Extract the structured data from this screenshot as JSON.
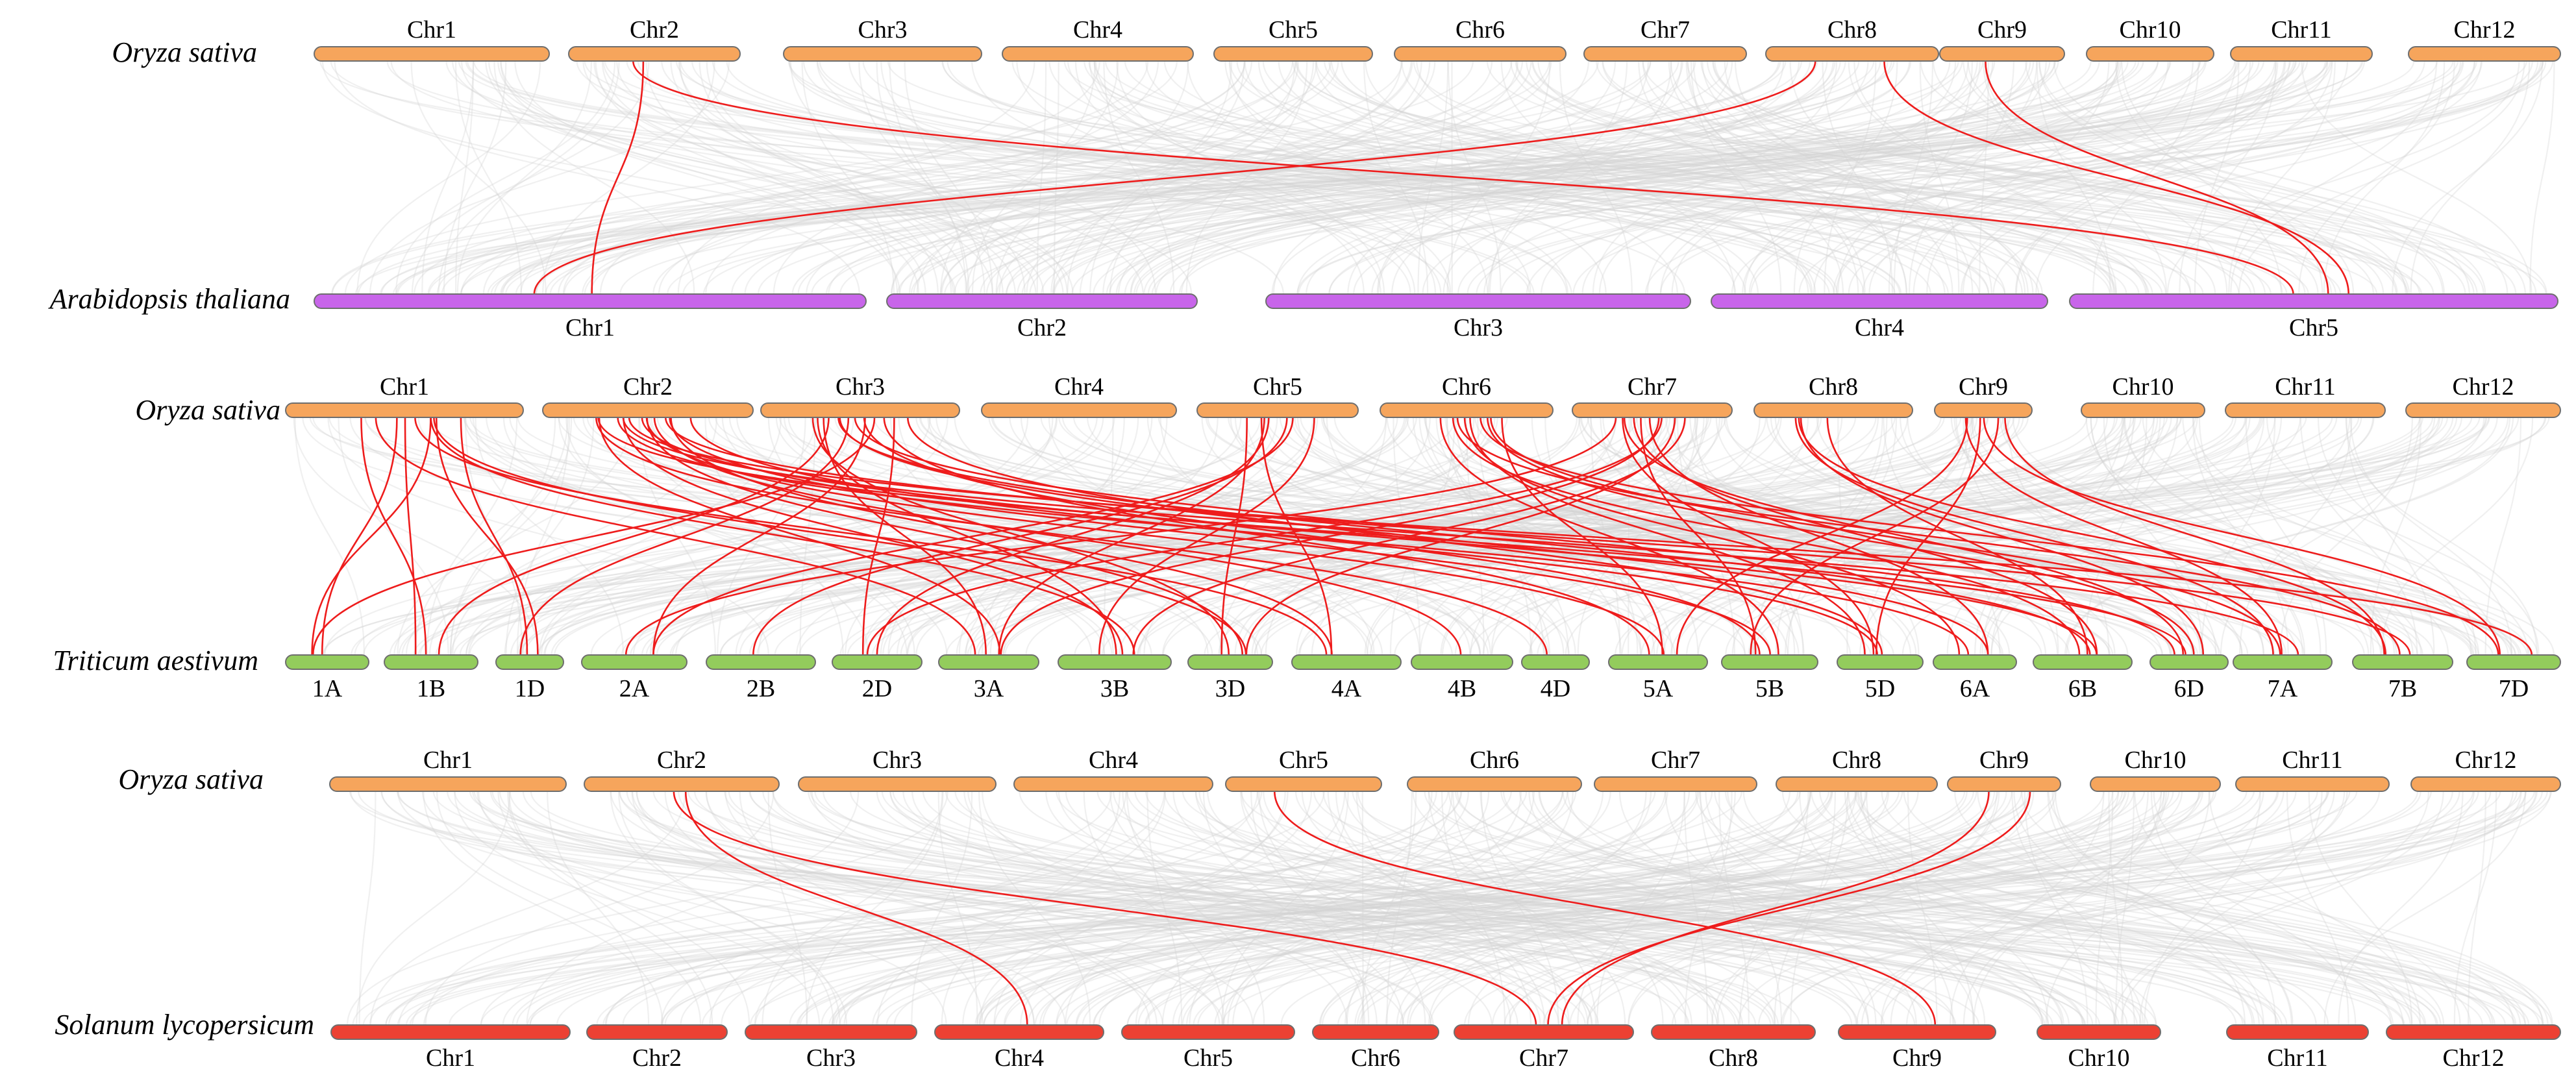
{
  "chart_data": {
    "type": "diagram",
    "title": "",
    "colors": {
      "rice": "#f6a55c",
      "arabidopsis": "#c865ea",
      "wheat": "#93cc5c",
      "tomato": "#ec4133",
      "highlight": "#ee1c1c",
      "background_link": "#d4d4d4"
    },
    "panels": [
      {
        "id": "rice_vs_arabidopsis",
        "top_species": "Oryza sativa",
        "bottom_species": "Arabidopsis thaliana",
        "top_chromosomes": [
          "Chr1",
          "Chr2",
          "Chr3",
          "Chr4",
          "Chr5",
          "Chr6",
          "Chr7",
          "Chr8",
          "Chr9",
          "Chr10",
          "Chr11",
          "Chr12"
        ],
        "bottom_chromosomes": [
          "Chr1",
          "Chr2",
          "Chr3",
          "Chr4",
          "Chr5"
        ],
        "highlighted_links": [
          {
            "top": "Chr2",
            "bottom": "Chr1"
          },
          {
            "top": "Chr2",
            "bottom": "Chr5"
          },
          {
            "top": "Chr8",
            "bottom": "Chr1"
          },
          {
            "top": "Chr8",
            "bottom": "Chr5"
          },
          {
            "top": "Chr9",
            "bottom": "Chr5"
          }
        ]
      },
      {
        "id": "rice_vs_wheat",
        "top_species": "Oryza sativa",
        "bottom_species": "Triticum aestivum",
        "top_chromosomes": [
          "Chr1",
          "Chr2",
          "Chr3",
          "Chr4",
          "Chr5",
          "Chr6",
          "Chr7",
          "Chr8",
          "Chr9",
          "Chr10",
          "Chr11",
          "Chr12"
        ],
        "bottom_chromosomes": [
          "1A",
          "1B",
          "1D",
          "2A",
          "2B",
          "2D",
          "3A",
          "3B",
          "3D",
          "4A",
          "4B",
          "4D",
          "5A",
          "5B",
          "5D",
          "6A",
          "6B",
          "6D",
          "7A",
          "7B",
          "7D"
        ],
        "highlighted_links": [
          {
            "top": "Chr1",
            "bottom": "1A"
          },
          {
            "top": "Chr1",
            "bottom": "1B"
          },
          {
            "top": "Chr1",
            "bottom": "1D"
          },
          {
            "top": "Chr1",
            "bottom": "1A"
          },
          {
            "top": "Chr1",
            "bottom": "1B"
          },
          {
            "top": "Chr1",
            "bottom": "1D"
          },
          {
            "top": "Chr1",
            "bottom": "3A"
          },
          {
            "top": "Chr1",
            "bottom": "3B"
          },
          {
            "top": "Chr1",
            "bottom": "3D"
          },
          {
            "top": "Chr1",
            "bottom": "4A"
          },
          {
            "top": "Chr2",
            "bottom": "5A"
          },
          {
            "top": "Chr2",
            "bottom": "5B"
          },
          {
            "top": "Chr2",
            "bottom": "5D"
          },
          {
            "top": "Chr2",
            "bottom": "6A"
          },
          {
            "top": "Chr2",
            "bottom": "6B"
          },
          {
            "top": "Chr2",
            "bottom": "6D"
          },
          {
            "top": "Chr2",
            "bottom": "7A"
          },
          {
            "top": "Chr2",
            "bottom": "7B"
          },
          {
            "top": "Chr2",
            "bottom": "7D"
          },
          {
            "top": "Chr2",
            "bottom": "3A"
          },
          {
            "top": "Chr2",
            "bottom": "3B"
          },
          {
            "top": "Chr2",
            "bottom": "3D"
          },
          {
            "top": "Chr2",
            "bottom": "4A"
          },
          {
            "top": "Chr2",
            "bottom": "4B"
          },
          {
            "top": "Chr2",
            "bottom": "4D"
          },
          {
            "top": "Chr3",
            "bottom": "1A"
          },
          {
            "top": "Chr3",
            "bottom": "1B"
          },
          {
            "top": "Chr3",
            "bottom": "1D"
          },
          {
            "top": "Chr3",
            "bottom": "2A"
          },
          {
            "top": "Chr3",
            "bottom": "2D"
          },
          {
            "top": "Chr3",
            "bottom": "3A"
          },
          {
            "top": "Chr3",
            "bottom": "3B"
          },
          {
            "top": "Chr3",
            "bottom": "3D"
          },
          {
            "top": "Chr3",
            "bottom": "5A"
          },
          {
            "top": "Chr3",
            "bottom": "5B"
          },
          {
            "top": "Chr3",
            "bottom": "5D"
          },
          {
            "top": "Chr3",
            "bottom": "6A"
          },
          {
            "top": "Chr3",
            "bottom": "6B"
          },
          {
            "top": "Chr3",
            "bottom": "6D"
          },
          {
            "top": "Chr5",
            "bottom": "2A"
          },
          {
            "top": "Chr5",
            "bottom": "2B"
          },
          {
            "top": "Chr5",
            "bottom": "2D"
          },
          {
            "top": "Chr5",
            "bottom": "3A"
          },
          {
            "top": "Chr5",
            "bottom": "3B"
          },
          {
            "top": "Chr5",
            "bottom": "3D"
          },
          {
            "top": "Chr5",
            "bottom": "4A"
          },
          {
            "top": "Chr6",
            "bottom": "5A"
          },
          {
            "top": "Chr6",
            "bottom": "5B"
          },
          {
            "top": "Chr6",
            "bottom": "5D"
          },
          {
            "top": "Chr6",
            "bottom": "6A"
          },
          {
            "top": "Chr6",
            "bottom": "6B"
          },
          {
            "top": "Chr6",
            "bottom": "6D"
          },
          {
            "top": "Chr6",
            "bottom": "7A"
          },
          {
            "top": "Chr6",
            "bottom": "7B"
          },
          {
            "top": "Chr6",
            "bottom": "7D"
          },
          {
            "top": "Chr7",
            "bottom": "2A"
          },
          {
            "top": "Chr7",
            "bottom": "2D"
          },
          {
            "top": "Chr7",
            "bottom": "3A"
          },
          {
            "top": "Chr7",
            "bottom": "3B"
          },
          {
            "top": "Chr7",
            "bottom": "3D"
          },
          {
            "top": "Chr7",
            "bottom": "5B"
          },
          {
            "top": "Chr7",
            "bottom": "5D"
          },
          {
            "top": "Chr7",
            "bottom": "6A"
          },
          {
            "top": "Chr7",
            "bottom": "6B"
          },
          {
            "top": "Chr7",
            "bottom": "6D"
          },
          {
            "top": "Chr8",
            "bottom": "6B"
          },
          {
            "top": "Chr8",
            "bottom": "6D"
          },
          {
            "top": "Chr8",
            "bottom": "7A"
          },
          {
            "top": "Chr8",
            "bottom": "7B"
          },
          {
            "top": "Chr9",
            "bottom": "5A"
          },
          {
            "top": "Chr9",
            "bottom": "5B"
          },
          {
            "top": "Chr9",
            "bottom": "5D"
          },
          {
            "top": "Chr9",
            "bottom": "7A"
          },
          {
            "top": "Chr9",
            "bottom": "7B"
          },
          {
            "top": "Chr9",
            "bottom": "7D"
          }
        ]
      },
      {
        "id": "rice_vs_tomato",
        "top_species": "Oryza sativa",
        "bottom_species": "Solanum lycopersicum",
        "top_chromosomes": [
          "Chr1",
          "Chr2",
          "Chr3",
          "Chr4",
          "Chr5",
          "Chr6",
          "Chr7",
          "Chr8",
          "Chr9",
          "Chr10",
          "Chr11",
          "Chr12"
        ],
        "bottom_chromosomes": [
          "Chr1",
          "Chr2",
          "Chr3",
          "Chr4",
          "Chr5",
          "Chr6",
          "Chr7",
          "Chr8",
          "Chr9",
          "Chr10",
          "Chr11",
          "Chr12"
        ],
        "highlighted_links": [
          {
            "top": "Chr2",
            "bottom": "Chr4"
          },
          {
            "top": "Chr2",
            "bottom": "Chr7"
          },
          {
            "top": "Chr5",
            "bottom": "Chr9"
          },
          {
            "top": "Chr9",
            "bottom": "Chr7"
          },
          {
            "top": "Chr9",
            "bottom": "Chr7"
          }
        ]
      }
    ]
  }
}
